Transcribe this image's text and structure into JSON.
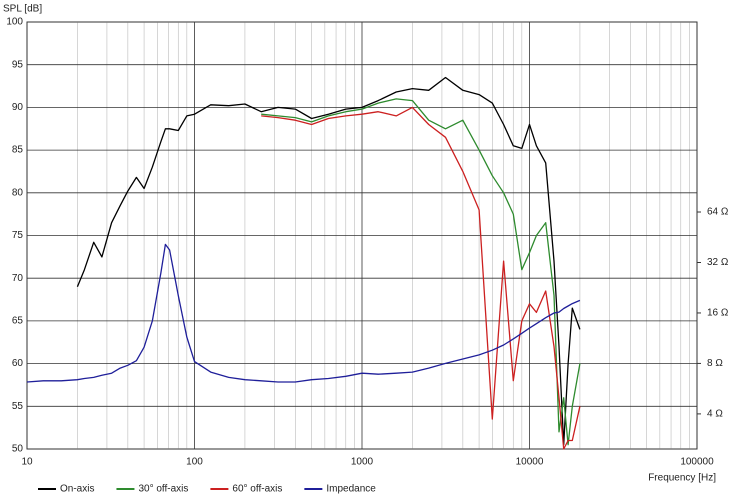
{
  "chart_data": {
    "type": "line",
    "y_label": "SPL [dB]",
    "x_label": "Frequency [Hz]",
    "x": [
      10,
      12.5,
      16,
      20,
      22,
      25,
      28,
      32,
      36,
      40,
      45,
      50,
      56,
      63,
      67,
      71,
      80,
      90,
      100,
      125,
      160,
      200,
      250,
      315,
      400,
      500,
      630,
      800,
      1000,
      1250,
      1600,
      2000,
      2500,
      3150,
      4000,
      5000,
      6000,
      7000,
      8000,
      9000,
      10000,
      11000,
      12500,
      14000,
      15000,
      16000,
      17000,
      18000,
      20000
    ],
    "xlim": [
      10,
      100000
    ],
    "x_log": true,
    "xticks": [
      10,
      100,
      1000,
      10000,
      100000
    ],
    "x_minor_ticks": [
      20,
      30,
      40,
      50,
      60,
      70,
      80,
      90,
      200,
      300,
      400,
      500,
      600,
      700,
      800,
      900,
      2000,
      3000,
      4000,
      5000,
      6000,
      7000,
      8000,
      9000,
      20000,
      30000,
      40000,
      50000,
      60000,
      70000,
      80000,
      90000
    ],
    "ylim": [
      50,
      100
    ],
    "yticks": [
      50,
      55,
      60,
      65,
      70,
      75,
      80,
      85,
      90,
      95,
      100
    ],
    "y2lim": [
      2.47,
      870
    ],
    "y2_log": true,
    "y2ticks": [
      {
        "value": 4,
        "label": "4 Ω"
      },
      {
        "value": 8,
        "label": "8 Ω"
      },
      {
        "value": 16,
        "label": "16 Ω"
      },
      {
        "value": 32,
        "label": "32 Ω"
      },
      {
        "value": 64,
        "label": "64 Ω"
      }
    ],
    "grid": true,
    "legend": "bottom",
    "series": [
      {
        "name": "On-axis",
        "color": "#000000",
        "values": [
          null,
          null,
          null,
          69,
          71,
          74.2,
          72.5,
          76.5,
          78.5,
          80.2,
          81.8,
          80.5,
          83,
          86,
          87.5,
          87.5,
          87.3,
          89,
          89.2,
          90.3,
          90.2,
          90.4,
          89.5,
          90,
          89.8,
          88.7,
          89.2,
          89.8,
          90,
          90.8,
          91.8,
          92.2,
          92,
          93.5,
          92,
          91.5,
          90.5,
          88,
          85.5,
          85.2,
          88,
          85.5,
          83.5,
          72,
          62,
          50.5,
          60,
          66.5,
          64
        ]
      },
      {
        "name": "30° off-axis",
        "color": "#2e8b2e",
        "values": [
          null,
          null,
          null,
          null,
          null,
          null,
          null,
          null,
          null,
          null,
          null,
          null,
          null,
          null,
          null,
          null,
          null,
          null,
          null,
          null,
          null,
          null,
          89.2,
          89,
          88.8,
          88.3,
          89,
          89.5,
          89.8,
          90.5,
          91,
          90.8,
          88.5,
          87.5,
          88.5,
          85,
          82,
          80,
          77.5,
          71,
          73,
          75,
          76.5,
          68,
          52,
          56,
          50.5,
          55,
          60
        ]
      },
      {
        "name": "60° off-axis",
        "color": "#cc2020",
        "values": [
          null,
          null,
          null,
          null,
          null,
          null,
          null,
          null,
          null,
          null,
          null,
          null,
          null,
          null,
          null,
          null,
          null,
          null,
          null,
          null,
          null,
          null,
          89,
          88.8,
          88.5,
          88,
          88.7,
          89,
          89.2,
          89.5,
          89,
          90,
          88,
          86.5,
          82.5,
          78,
          53.5,
          72,
          58,
          65,
          67,
          66,
          68.5,
          62,
          56,
          50,
          51,
          51,
          55
        ]
      },
      {
        "name": "Impedance",
        "color": "#1f1f9a",
        "axis": "y2",
        "values": [
          6.2,
          6.3,
          6.3,
          6.4,
          6.5,
          6.6,
          6.8,
          7.0,
          7.5,
          7.8,
          8.3,
          10,
          14.3,
          27.8,
          41,
          38,
          20.3,
          11.5,
          8.2,
          7.1,
          6.6,
          6.4,
          6.3,
          6.2,
          6.2,
          6.4,
          6.5,
          6.7,
          7.0,
          6.9,
          7.0,
          7.1,
          7.5,
          8.0,
          8.5,
          9.0,
          9.6,
          10.3,
          11.2,
          12.1,
          13.0,
          13.8,
          15,
          16,
          16.2,
          17,
          17.6,
          18.2,
          19
        ]
      }
    ]
  }
}
